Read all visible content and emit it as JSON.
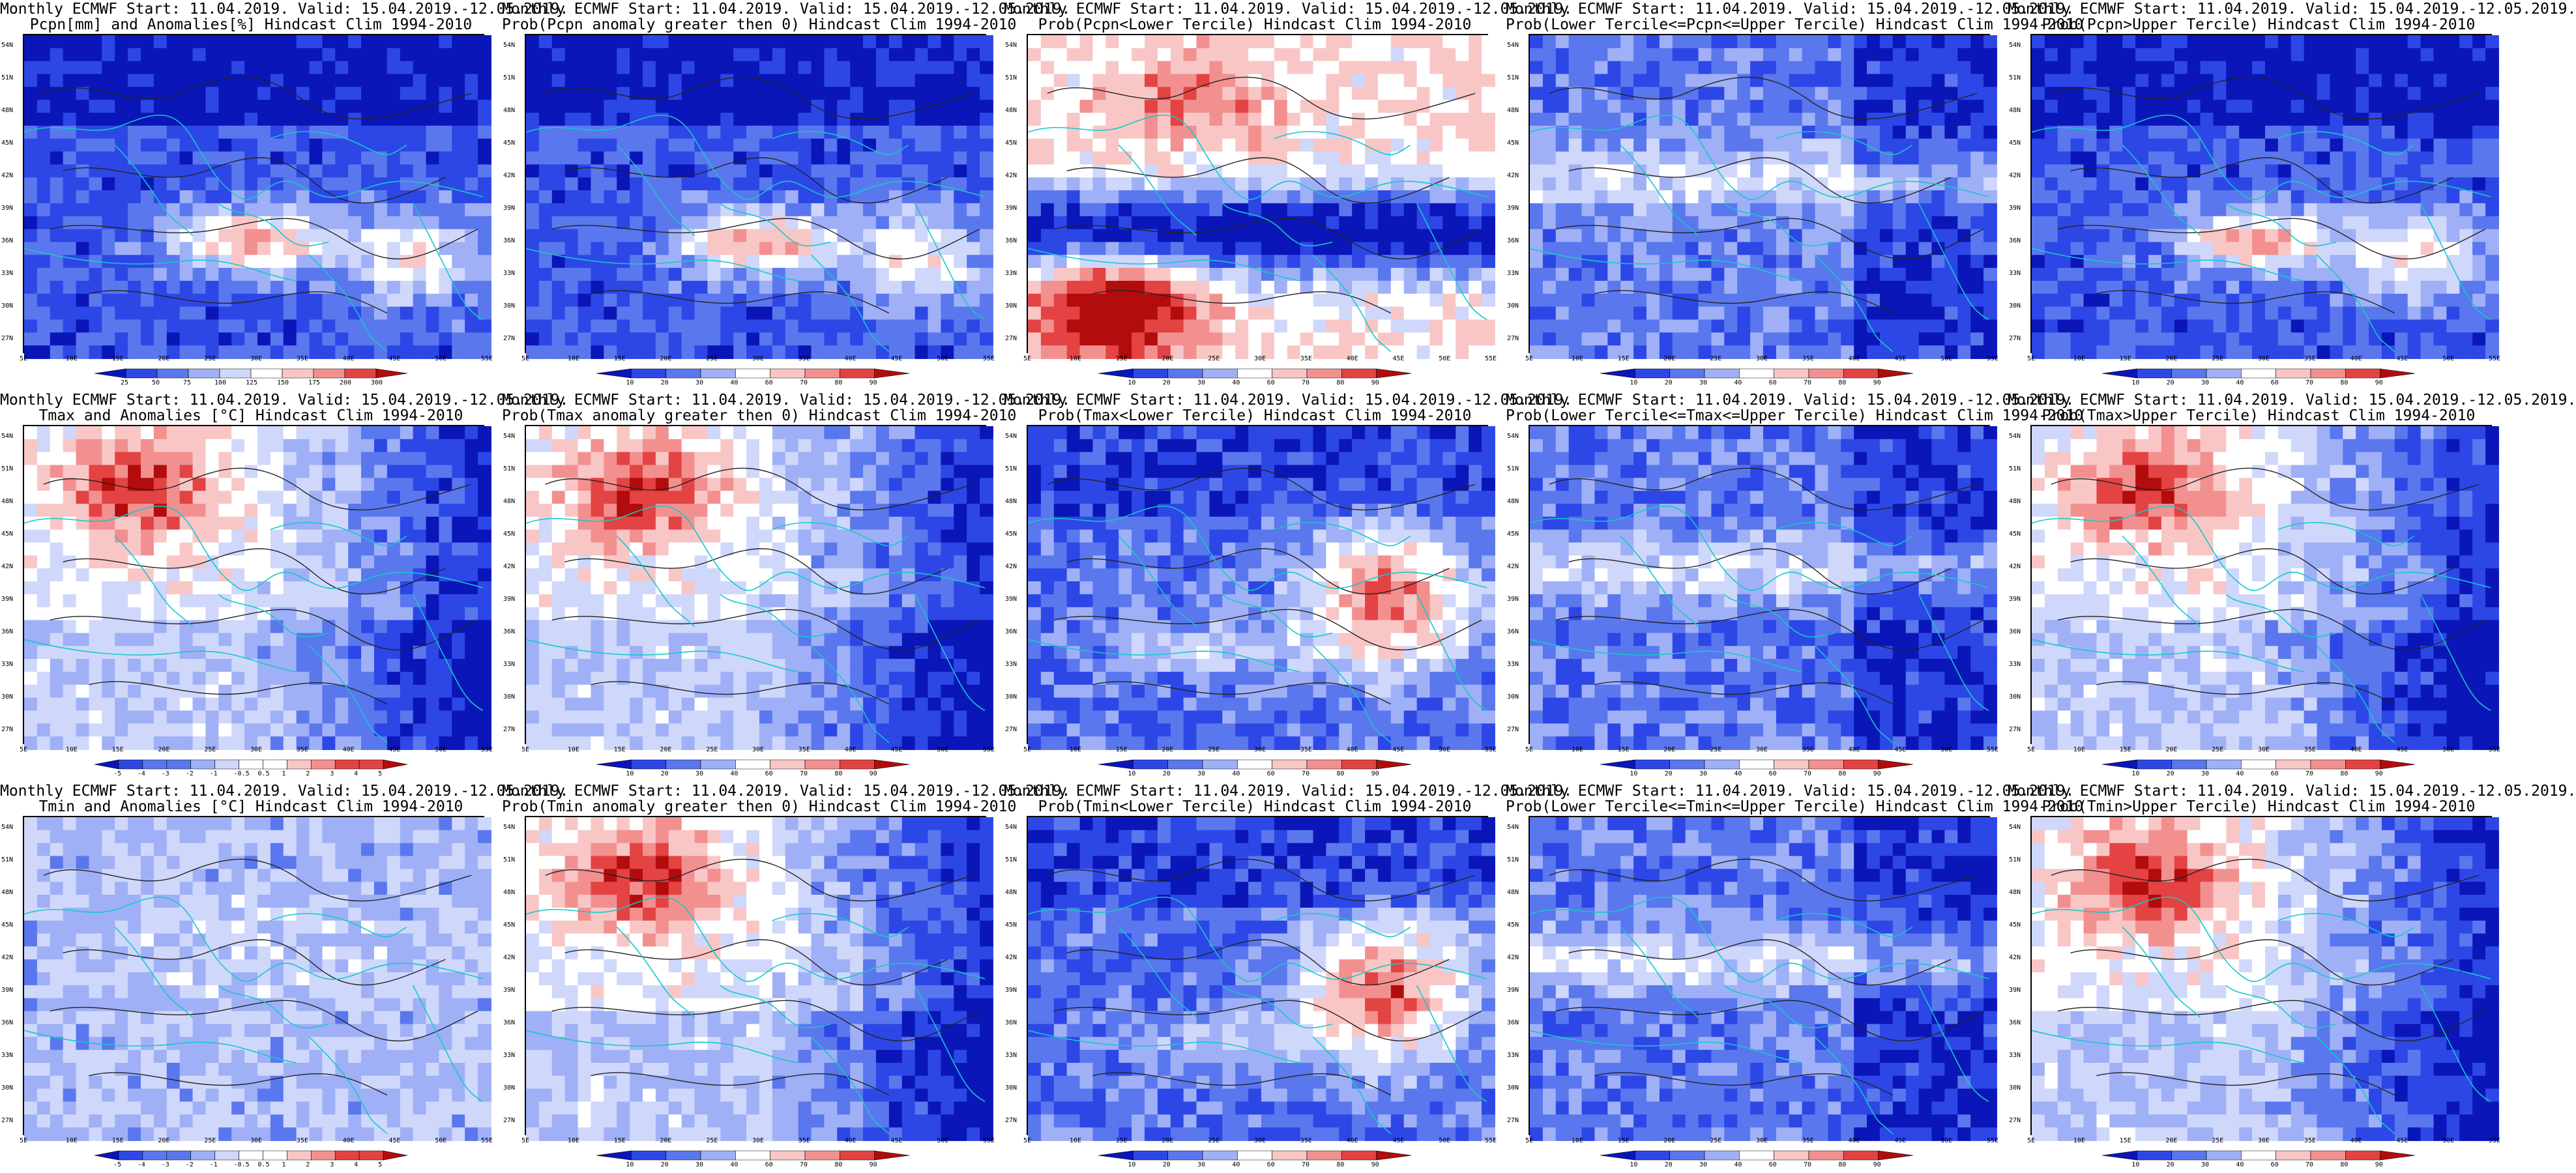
{
  "lat_ticks": [
    "54N",
    "51N",
    "48N",
    "45N",
    "42N",
    "39N",
    "36N",
    "33N",
    "30N",
    "27N"
  ],
  "lon_ticks": [
    "5E",
    "10E",
    "15E",
    "20E",
    "25E",
    "30E",
    "35E",
    "40E",
    "45E",
    "50E",
    "55E"
  ],
  "legends": {
    "precip": [
      "25",
      "50",
      "75",
      "100",
      "125",
      "150",
      "175",
      "200",
      "300"
    ],
    "anom": [
      "-5",
      "-4",
      "-3",
      "-2",
      "-1",
      "-0.5",
      "0.5",
      "1",
      "2",
      "3",
      "4",
      "5"
    ],
    "prob": [
      "10",
      "20",
      "30",
      "40",
      "60",
      "70",
      "80",
      "90"
    ]
  },
  "colors": {
    "deep_blue": "#0b16b8",
    "blue": "#2d47e6",
    "mid_blue": "#5a77ee",
    "light_blue": "#9fb0f6",
    "pale_blue": "#cfd7fb",
    "white": "#ffffff",
    "pale_red": "#f9c6c6",
    "light_red": "#f29090",
    "red": "#e34343",
    "deep_red": "#b30c0c",
    "contour": "#222222",
    "coast": "#13c9c9"
  },
  "panels": [
    {
      "line1": "Monthly ECMWF Start: 11.04.2019. Valid: 15.04.2019.-12.05.2019.",
      "line2": "Pcpn[mm] and Anomalies[%] Hindcast Clim 1994-2010",
      "legend": "precip",
      "theme": "north_blue_south_red"
    },
    {
      "line1": "Monthly ECMWF Start: 11.04.2019. Valid: 15.04.2019.-12.05.2019.",
      "line2": "Prob(Pcpn anomaly greater then 0) Hindcast Clim 1994-2010",
      "legend": "prob",
      "theme": "north_blue_south_red"
    },
    {
      "line1": "Monthly ECMWF Start: 11.04.2019. Valid: 15.04.2019.-12.05.2019.",
      "line2": "Prob(Pcpn<Lower Tercile) Hindcast Clim 1994-2010",
      "legend": "prob",
      "theme": "north_red_south_blue"
    },
    {
      "line1": "Monthly ECMWF Start: 11.04.2019. Valid: 15.04.2019.-12.05.2019.",
      "line2": "Prob(Lower Tercile<=Pcpn<=Upper Tercile) Hindcast Clim 1994-2010",
      "legend": "prob",
      "theme": "mostly_blue"
    },
    {
      "line1": "Monthly ECMWF Start: 11.04.2019. Valid: 15.04.2019.-12.05.2019.",
      "line2": "Prob(Pcpn>Upper Tercile) Hindcast Clim 1994-2010",
      "legend": "prob",
      "theme": "north_blue_south_red"
    },
    {
      "line1": "Monthly ECMWF Start: 11.04.2019. Valid: 15.04.2019.-12.05.2019.",
      "line2": "Tmax and Anomalies [°C] Hindcast Clim 1994-2010",
      "legend": "anom",
      "theme": "west_red_east_blue"
    },
    {
      "line1": "Monthly ECMWF Start: 11.04.2019. Valid: 15.04.2019.-12.05.2019.",
      "line2": "Prob(Tmax anomaly greater then 0) Hindcast Clim 1994-2010",
      "legend": "prob",
      "theme": "west_red_east_blue"
    },
    {
      "line1": "Monthly ECMWF Start: 11.04.2019. Valid: 15.04.2019.-12.05.2019.",
      "line2": "Prob(Tmax<Lower Tercile) Hindcast Clim 1994-2010",
      "legend": "prob",
      "theme": "west_blue_east_red"
    },
    {
      "line1": "Monthly ECMWF Start: 11.04.2019. Valid: 15.04.2019.-12.05.2019.",
      "line2": "Prob(Lower Tercile<=Tmax<=Upper Tercile) Hindcast Clim 1994-2010",
      "legend": "prob",
      "theme": "mostly_blue"
    },
    {
      "line1": "Monthly ECMWF Start: 11.04.2019. Valid: 15.04.2019.-12.05.2019.",
      "line2": "Prob(Tmax>Upper Tercile) Hindcast Clim 1994-2010",
      "legend": "prob",
      "theme": "west_red_east_blue"
    },
    {
      "line1": "Monthly ECMWF Start: 11.04.2019. Valid: 15.04.2019.-12.05.2019.",
      "line2": "Tmin and Anomalies [°C] Hindcast Clim 1994-2010",
      "legend": "anom",
      "theme": "mostly_blue_light"
    },
    {
      "line1": "Monthly ECMWF Start: 11.04.2019. Valid: 15.04.2019.-12.05.2019.",
      "line2": "Prob(Tmin anomaly greater then 0) Hindcast Clim 1994-2010",
      "legend": "prob",
      "theme": "west_red_east_blue"
    },
    {
      "line1": "Monthly ECMWF Start: 11.04.2019. Valid: 15.04.2019.-12.05.2019.",
      "line2": "Prob(Tmin<Lower Tercile) Hindcast Clim 1994-2010",
      "legend": "prob",
      "theme": "west_blue_east_red"
    },
    {
      "line1": "Monthly ECMWF Start: 11.04.2019. Valid: 15.04.2019.-12.05.2019.",
      "line2": "Prob(Lower Tercile<=Tmin<=Upper Tercile) Hindcast Clim 1994-2010",
      "legend": "prob",
      "theme": "mostly_blue"
    },
    {
      "line1": "Monthly ECMWF Start: 11.04.2019. Valid: 15.04.2019.-12.05.2019.",
      "line2": "Prob(Tmin>Upper Tercile) Hindcast Clim 1994-2010",
      "legend": "prob",
      "theme": "west_red_east_blue"
    }
  ]
}
